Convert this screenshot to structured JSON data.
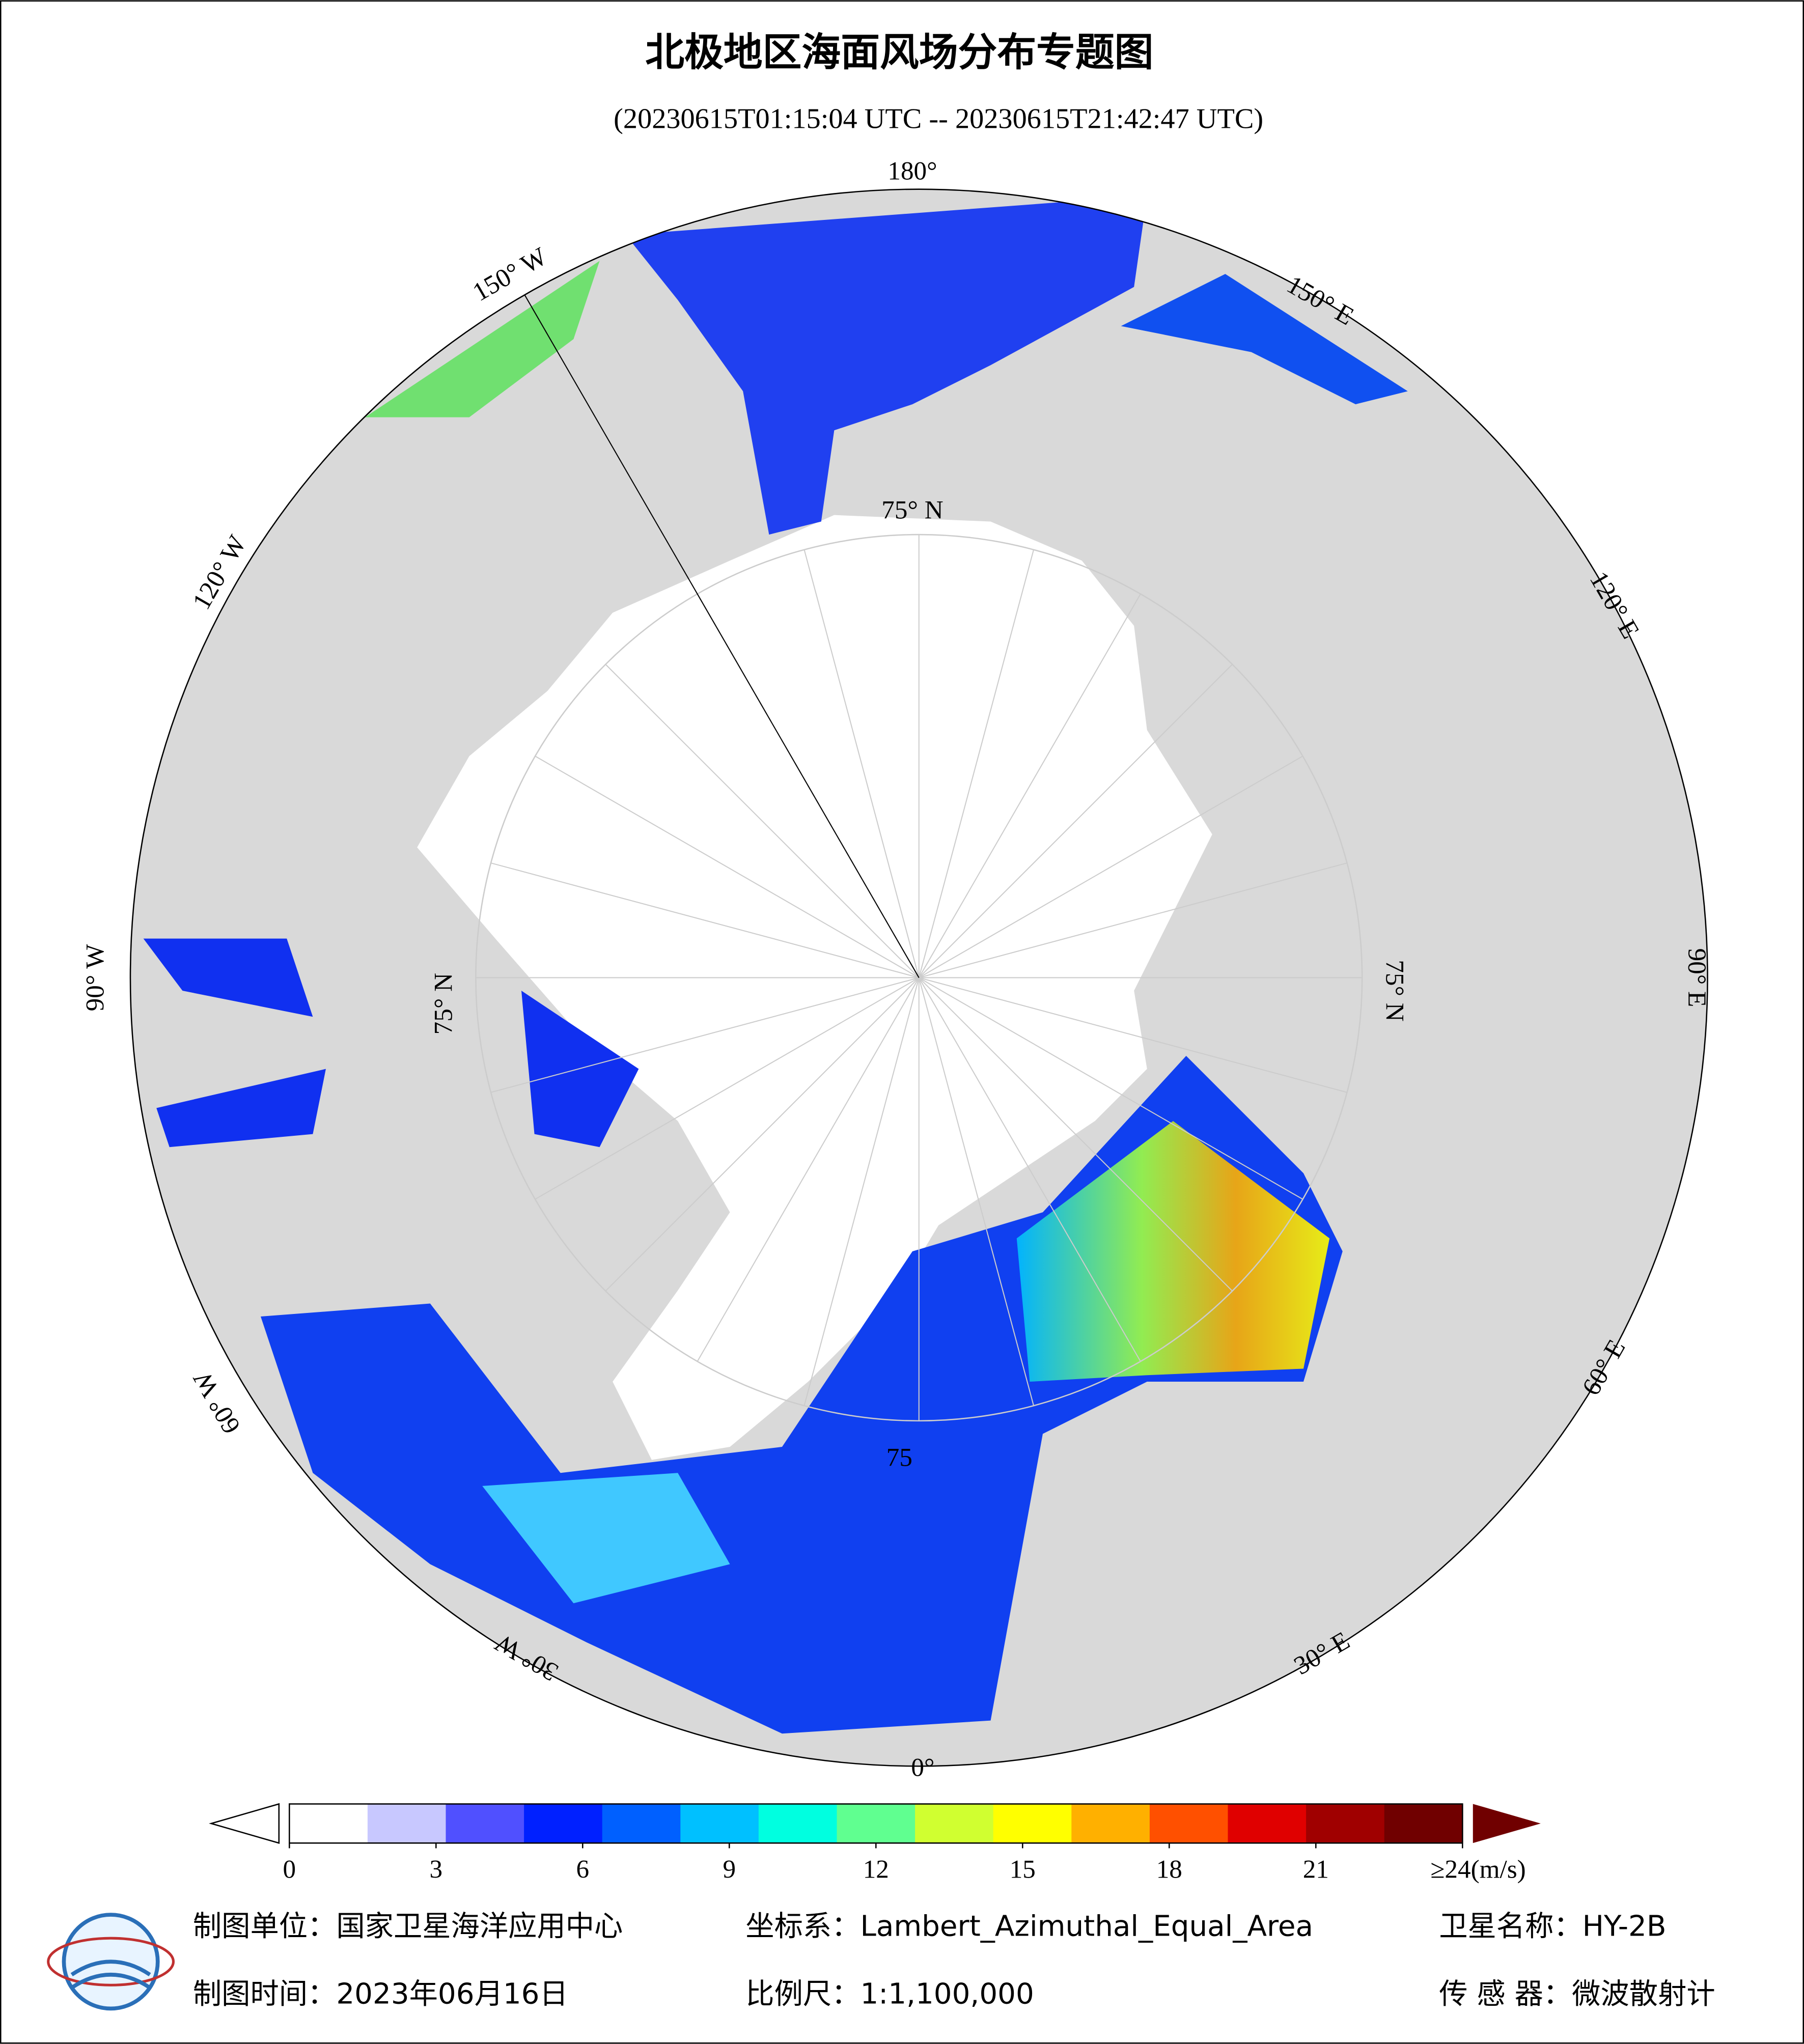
{
  "title": "北极地区海面风场分布专题图",
  "subtitle": "(20230615T01:15:04 UTC -- 20230615T21:42:47 UTC)",
  "map_labels": [
    "180°",
    "150° E",
    "120° E",
    "90° E",
    "60° E",
    "30° E",
    "0°",
    "30° W",
    "60° W",
    "90° W",
    "120° W",
    "150° W",
    "75° N",
    "75° N",
    "75° N",
    "75"
  ],
  "colorbar": {
    "range": [
      0,
      24
    ],
    "ticks": [
      0,
      3,
      6,
      9,
      12,
      15,
      18,
      21,
      {
        "value": 24,
        "label": "≥24(m/s)"
      }
    ],
    "colors": [
      "#ffffff",
      "#c8c8ff",
      "#5050ff",
      "#0020ff",
      "#0060ff",
      "#00c0ff",
      "#00ffe0",
      "#60ff90",
      "#d0ff30",
      "#ffff00",
      "#ffb000",
      "#ff5000",
      "#e00000",
      "#a00000",
      "#700000"
    ]
  },
  "footer": [
    "制图单位：国家卫星海洋应用中心",
    "坐标系：Lambert_Azimuthal_Equal_Area",
    "卫星名称：HY-2B",
    "制图时间：2023年06月16日",
    "比例尺：1:1,100,000",
    "传 感 器：微波散射计"
  ]
}
